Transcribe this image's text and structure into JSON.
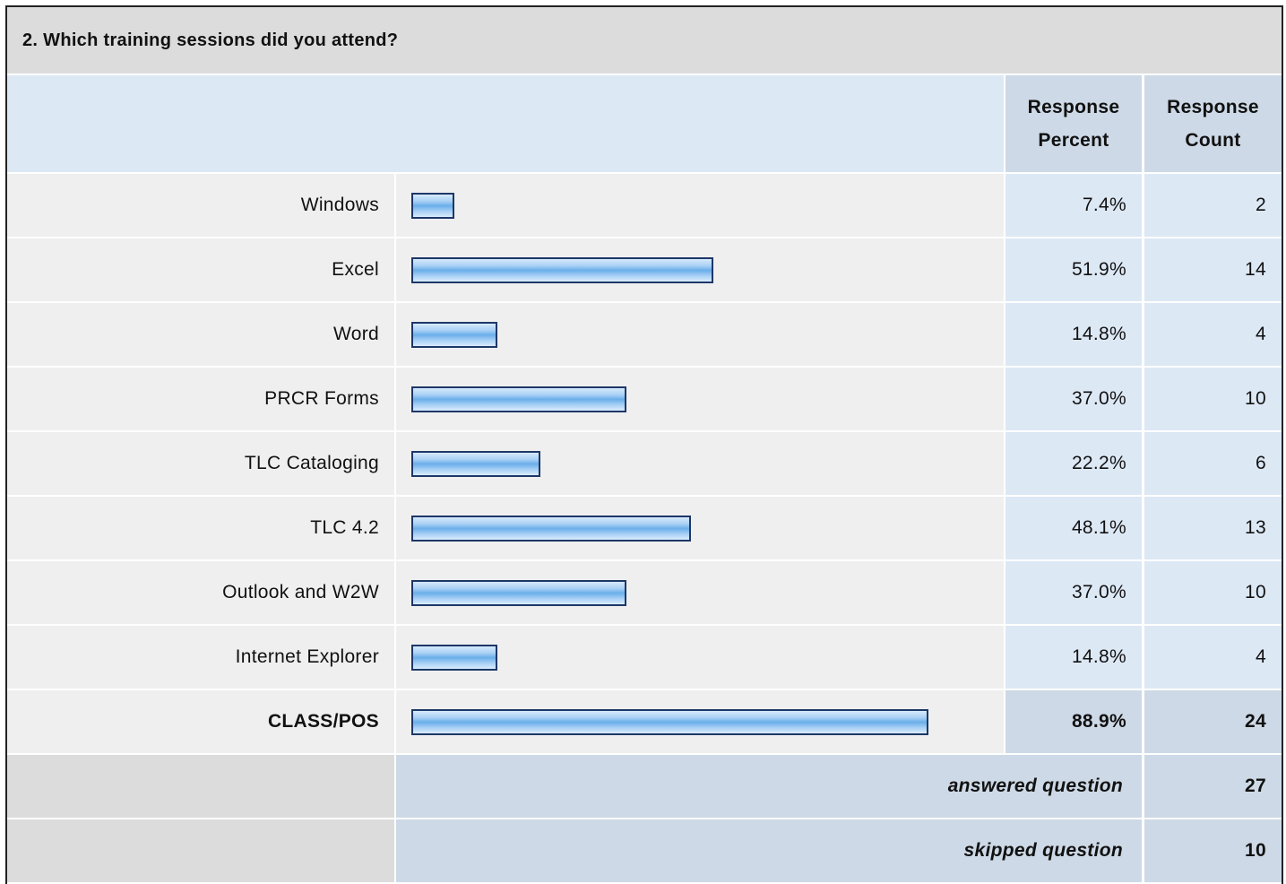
{
  "question": "2. Which training sessions did you attend?",
  "headers": {
    "percent": "Response Percent",
    "count": "Response Count"
  },
  "rows": [
    {
      "label": "Windows",
      "percent": {
        "value": 7.4,
        "label": "7.4%"
      },
      "count": 2
    },
    {
      "label": "Excel",
      "percent": {
        "value": 51.9,
        "label": "51.9%"
      },
      "count": 14
    },
    {
      "label": "Word",
      "percent": {
        "value": 14.8,
        "label": "14.8%"
      },
      "count": 4
    },
    {
      "label": "PRCR Forms",
      "percent": {
        "value": 37.0,
        "label": "37.0%"
      },
      "count": 10
    },
    {
      "label": "TLC Cataloging",
      "percent": {
        "value": 22.2,
        "label": "22.2%"
      },
      "count": 6
    },
    {
      "label": "TLC 4.2",
      "percent": {
        "value": 48.1,
        "label": "48.1%"
      },
      "count": 13
    },
    {
      "label": "Outlook and W2W",
      "percent": {
        "value": 37.0,
        "label": "37.0%"
      },
      "count": 10
    },
    {
      "label": "Internet Explorer",
      "percent": {
        "value": 14.8,
        "label": "14.8%"
      },
      "count": 4
    },
    {
      "label": "CLASS/POS",
      "percent": {
        "value": 88.9,
        "label": "88.9%"
      },
      "count": 24
    }
  ],
  "summary": [
    {
      "label": "answered question",
      "count": 27
    },
    {
      "label": "skipped question",
      "count": 10
    }
  ]
}
